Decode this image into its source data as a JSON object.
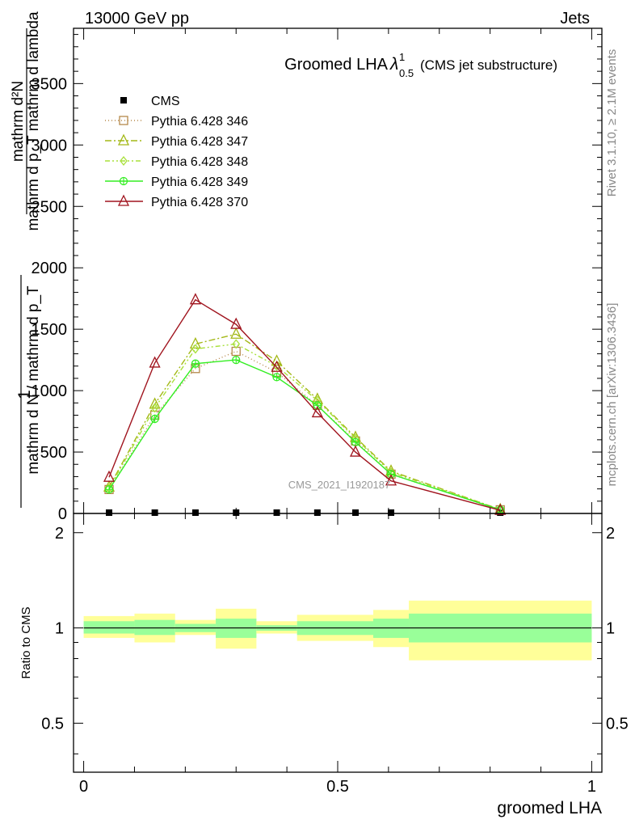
{
  "header": {
    "left": "13000 GeV pp",
    "right": "Jets"
  },
  "side_labels": {
    "rivet": "Rivet 3.1.10, ≥ 2.1M events",
    "mcplots": "mcplots.cern.ch [arXiv:1306.3436]"
  },
  "watermark": "CMS_2021_I1920187",
  "title": {
    "main": "Groomed LHA",
    "symbol": "λ",
    "sup": "1",
    "sub": "0.5",
    "suffix": "(CMS jet substructure)"
  },
  "main_ylabel": {
    "num": "mathrm d²N",
    "den": "mathrm d p_T mathrm d lambda",
    "prefix": "1",
    "pre_den": "mathrm d N / mathrm d p_T"
  },
  "ratio_ylabel": "Ratio to CMS",
  "xlabel": "groomed LHA",
  "chart_data": [
    {
      "type": "line",
      "panel": "main",
      "xlim": [
        -0.02,
        1.02
      ],
      "ylim": [
        0,
        3950
      ],
      "xticks": [
        0,
        0.5,
        1
      ],
      "yticks": [
        0,
        500,
        1000,
        1500,
        2000,
        2500,
        3000,
        3500
      ],
      "ytick_labels": [
        "0",
        "500",
        "1000",
        "1500",
        "2000",
        "2500",
        "3000",
        "3500"
      ],
      "grid": false,
      "legend_position": "top-left",
      "x": [
        0.05,
        0.14,
        0.22,
        0.3,
        0.38,
        0.46,
        0.535,
        0.605,
        0.82
      ],
      "series": [
        {
          "name": "CMS",
          "color": "#000000",
          "marker": "square-filled",
          "dash": "none",
          "values": [
            0,
            0,
            0,
            0,
            0,
            0,
            0,
            0,
            0
          ]
        },
        {
          "name": "Pythia 6.428 346",
          "color": "#b5894a",
          "marker": "square-open",
          "dash": "1,3",
          "values": [
            195,
            800,
            1180,
            1320,
            1150,
            880,
            590,
            320,
            30
          ]
        },
        {
          "name": "Pythia 6.428 347",
          "color": "#a3b816",
          "marker": "triangle-open",
          "dash": "8,3,2,3",
          "values": [
            215,
            890,
            1380,
            1460,
            1240,
            930,
            620,
            345,
            32
          ]
        },
        {
          "name": "Pythia 6.428 348",
          "color": "#a8e03a",
          "marker": "diamond-open",
          "dash": "6,3,2,3,2,3",
          "values": [
            205,
            860,
            1340,
            1380,
            1200,
            920,
            610,
            335,
            31
          ]
        },
        {
          "name": "Pythia 6.428 349",
          "color": "#33ee22",
          "marker": "circle-cross",
          "dash": "none",
          "values": [
            195,
            770,
            1220,
            1250,
            1110,
            880,
            580,
            320,
            30
          ]
        },
        {
          "name": "Pythia 6.428 370",
          "color": "#a0141e",
          "marker": "triangle-open",
          "dash": "none",
          "values": [
            295,
            1225,
            1740,
            1540,
            1190,
            820,
            500,
            265,
            26
          ]
        }
      ]
    },
    {
      "type": "area",
      "panel": "ratio",
      "ylabel": "Ratio to CMS",
      "xlabel": "groomed LHA",
      "xlim": [
        -0.02,
        1.02
      ],
      "ylim": [
        0.35,
        2.3
      ],
      "xticks": [
        0,
        0.5,
        1
      ],
      "xtick_labels": [
        "0",
        "0.5",
        "1"
      ],
      "yticks": [
        0.5,
        1,
        2
      ],
      "ytick_labels": [
        "0.5",
        "1",
        "2"
      ],
      "bins": [
        {
          "lo": 0.0,
          "hi": 0.1,
          "inner": [
            0.96,
            1.05
          ],
          "outer": [
            0.93,
            1.09
          ]
        },
        {
          "lo": 0.1,
          "hi": 0.18,
          "inner": [
            0.95,
            1.06
          ],
          "outer": [
            0.9,
            1.11
          ]
        },
        {
          "lo": 0.18,
          "hi": 0.26,
          "inner": [
            0.97,
            1.03
          ],
          "outer": [
            0.95,
            1.06
          ]
        },
        {
          "lo": 0.26,
          "hi": 0.34,
          "inner": [
            0.93,
            1.07
          ],
          "outer": [
            0.86,
            1.15
          ]
        },
        {
          "lo": 0.34,
          "hi": 0.42,
          "inner": [
            0.98,
            1.02
          ],
          "outer": [
            0.96,
            1.05
          ]
        },
        {
          "lo": 0.42,
          "hi": 0.5,
          "inner": [
            0.95,
            1.05
          ],
          "outer": [
            0.91,
            1.1
          ]
        },
        {
          "lo": 0.5,
          "hi": 0.57,
          "inner": [
            0.95,
            1.05
          ],
          "outer": [
            0.91,
            1.1
          ]
        },
        {
          "lo": 0.57,
          "hi": 0.64,
          "inner": [
            0.93,
            1.07
          ],
          "outer": [
            0.87,
            1.14
          ]
        },
        {
          "lo": 0.64,
          "hi": 1.0,
          "inner": [
            0.9,
            1.11
          ],
          "outer": [
            0.79,
            1.22
          ]
        }
      ],
      "colors": {
        "inner": "#99ff99",
        "outer": "#ffff99"
      }
    }
  ]
}
